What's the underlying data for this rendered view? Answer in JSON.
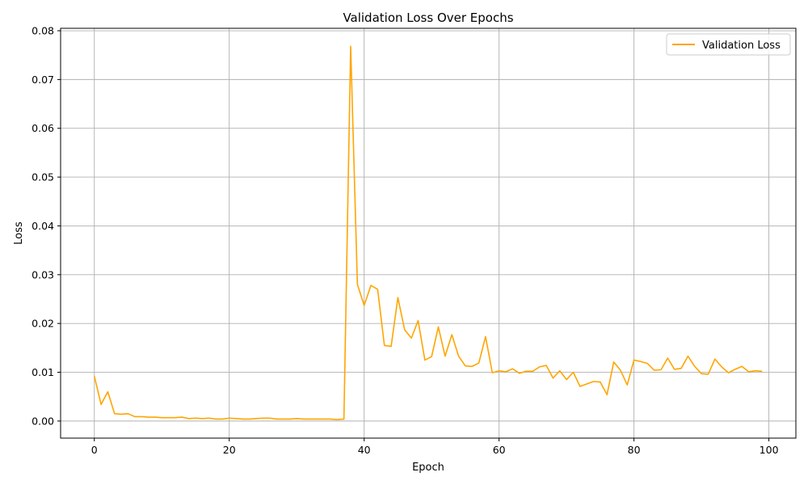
{
  "chart_data": {
    "type": "line",
    "title": "Validation Loss Over Epochs",
    "xlabel": "Epoch",
    "ylabel": "Loss",
    "xlim": [
      -5,
      104
    ],
    "ylim": [
      -0.0035,
      0.0805
    ],
    "xticks": [
      0,
      20,
      40,
      60,
      80,
      100
    ],
    "yticks": [
      0.0,
      0.01,
      0.02,
      0.03,
      0.04,
      0.05,
      0.06,
      0.07,
      0.08
    ],
    "xtick_labels": [
      "0",
      "20",
      "40",
      "60",
      "80",
      "100"
    ],
    "ytick_labels": [
      "0.00",
      "0.01",
      "0.02",
      "0.03",
      "0.04",
      "0.05",
      "0.06",
      "0.07",
      "0.08"
    ],
    "grid": true,
    "legend_position": "top-right",
    "series": [
      {
        "name": "Validation Loss",
        "color": "#FFA500",
        "x": [
          0,
          1,
          2,
          3,
          4,
          5,
          6,
          7,
          8,
          9,
          10,
          11,
          12,
          13,
          14,
          15,
          16,
          17,
          18,
          19,
          20,
          21,
          22,
          23,
          24,
          25,
          26,
          27,
          28,
          29,
          30,
          31,
          32,
          33,
          34,
          35,
          36,
          37,
          38,
          39,
          40,
          41,
          42,
          43,
          44,
          45,
          46,
          47,
          48,
          49,
          50,
          51,
          52,
          53,
          54,
          55,
          56,
          57,
          58,
          59,
          60,
          61,
          62,
          63,
          64,
          65,
          66,
          67,
          68,
          69,
          70,
          71,
          72,
          73,
          74,
          75,
          76,
          77,
          78,
          79,
          80,
          81,
          82,
          83,
          84,
          85,
          86,
          87,
          88,
          89,
          90,
          91,
          92,
          93,
          94,
          95,
          96,
          97,
          98,
          99
        ],
        "values": [
          0.0092,
          0.0034,
          0.006,
          0.0015,
          0.0014,
          0.0015,
          0.0009,
          0.0009,
          0.0008,
          0.0008,
          0.0007,
          0.0007,
          0.0007,
          0.0008,
          0.0005,
          0.0006,
          0.0005,
          0.0006,
          0.0004,
          0.0004,
          0.0006,
          0.0005,
          0.0004,
          0.0004,
          0.0005,
          0.0006,
          0.0006,
          0.0004,
          0.0004,
          0.0004,
          0.0005,
          0.0004,
          0.0004,
          0.0004,
          0.0004,
          0.0004,
          0.0003,
          0.0004,
          0.0768,
          0.028,
          0.0237,
          0.0278,
          0.027,
          0.0155,
          0.0153,
          0.0253,
          0.0187,
          0.017,
          0.0206,
          0.0125,
          0.0132,
          0.0193,
          0.0133,
          0.0177,
          0.0133,
          0.0113,
          0.0112,
          0.0119,
          0.0173,
          0.0099,
          0.0103,
          0.0101,
          0.0107,
          0.0098,
          0.0102,
          0.0102,
          0.0111,
          0.0114,
          0.0088,
          0.0103,
          0.0085,
          0.01,
          0.0071,
          0.0076,
          0.0081,
          0.008,
          0.0054,
          0.0121,
          0.0104,
          0.0074,
          0.0125,
          0.0122,
          0.0118,
          0.0104,
          0.0105,
          0.0129,
          0.0106,
          0.0108,
          0.0133,
          0.0112,
          0.0097,
          0.0096,
          0.0127,
          0.0111,
          0.0099,
          0.0106,
          0.0112,
          0.0101,
          0.0103,
          0.0102
        ]
      }
    ]
  }
}
